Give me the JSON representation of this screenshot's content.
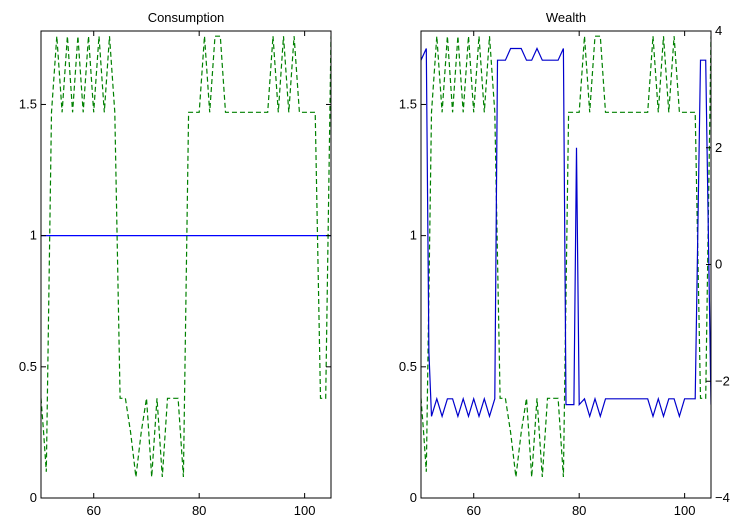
{
  "chart_data": [
    {
      "type": "line",
      "title": "Consumption",
      "xlabel": "",
      "ylabel": "",
      "xlim": [
        50,
        105
      ],
      "ylim": [
        0,
        1.78
      ],
      "xticks": [
        60,
        80,
        100
      ],
      "yticks": [
        0,
        0.5,
        1,
        1.5
      ],
      "ytick_labels": [
        "0",
        "0.5",
        "1",
        "1.5"
      ],
      "grid": false,
      "series": [
        {
          "style": "solid",
          "color": "#0000ff",
          "x": [
            50,
            105
          ],
          "y": [
            1.0,
            1.0
          ]
        },
        {
          "style": "dashed",
          "color": "#008000",
          "x": [
            50,
            50.5,
            51,
            52,
            53,
            54,
            55,
            56,
            57,
            58,
            59,
            60,
            61,
            62,
            63,
            64,
            65,
            66,
            67,
            68,
            69,
            70,
            71,
            72,
            73,
            74,
            75,
            76,
            77,
            78,
            79,
            80,
            81,
            82,
            83,
            84,
            85,
            86,
            87,
            88,
            89,
            90,
            91,
            92,
            93,
            94,
            95,
            96,
            97,
            98,
            99,
            100,
            101,
            102,
            103,
            104,
            105
          ],
          "y": [
            0.38,
            0.25,
            0.1,
            1.47,
            1.76,
            1.47,
            1.76,
            1.47,
            1.76,
            1.47,
            1.76,
            1.47,
            1.76,
            1.47,
            1.76,
            1.47,
            0.38,
            0.38,
            0.25,
            0.08,
            0.25,
            0.38,
            0.08,
            0.38,
            0.08,
            0.38,
            0.38,
            0.38,
            0.08,
            1.47,
            1.47,
            1.47,
            1.76,
            1.47,
            1.76,
            1.76,
            1.47,
            1.47,
            1.47,
            1.47,
            1.47,
            1.47,
            1.47,
            1.47,
            1.47,
            1.76,
            1.47,
            1.76,
            1.47,
            1.76,
            1.47,
            1.47,
            1.47,
            1.47,
            0.38,
            0.38,
            1.76
          ]
        }
      ]
    },
    {
      "type": "line",
      "title": "Wealth",
      "xlabel": "",
      "ylabel": "",
      "xlim": [
        50,
        105
      ],
      "ylim": [
        0,
        1.78
      ],
      "xticks": [
        60,
        80,
        100
      ],
      "yticks": [
        0,
        0.5,
        1,
        1.5
      ],
      "ytick_labels": [
        "0",
        "0.5",
        "1",
        "1.5"
      ],
      "y2lim": [
        -4,
        4
      ],
      "y2ticks": [
        -4,
        -2,
        0,
        2,
        4
      ],
      "y2tick_labels": [
        "−4",
        "−2",
        "0",
        "2",
        "4"
      ],
      "grid": false,
      "series": [
        {
          "style": "dashed",
          "color": "#008000",
          "axis": "left",
          "x": [
            50,
            50.5,
            51,
            52,
            53,
            54,
            55,
            56,
            57,
            58,
            59,
            60,
            61,
            62,
            63,
            64,
            65,
            66,
            67,
            68,
            69,
            70,
            71,
            72,
            73,
            74,
            75,
            76,
            77,
            78,
            79,
            80,
            81,
            82,
            83,
            84,
            85,
            86,
            87,
            88,
            89,
            90,
            91,
            92,
            93,
            94,
            95,
            96,
            97,
            98,
            99,
            100,
            101,
            102,
            103,
            104,
            105
          ],
          "y": [
            0.38,
            0.25,
            0.1,
            1.47,
            1.76,
            1.47,
            1.76,
            1.47,
            1.76,
            1.47,
            1.76,
            1.47,
            1.76,
            1.47,
            1.76,
            1.47,
            0.38,
            0.38,
            0.25,
            0.08,
            0.25,
            0.38,
            0.08,
            0.38,
            0.08,
            0.38,
            0.38,
            0.38,
            0.08,
            1.47,
            1.47,
            1.47,
            1.76,
            1.47,
            1.76,
            1.76,
            1.47,
            1.47,
            1.47,
            1.47,
            1.47,
            1.47,
            1.47,
            1.47,
            1.47,
            1.76,
            1.47,
            1.76,
            1.47,
            1.76,
            1.47,
            1.47,
            1.47,
            1.47,
            0.38,
            0.38,
            1.76
          ]
        },
        {
          "style": "solid",
          "color": "#0000cc",
          "axis": "right",
          "x": [
            50,
            51,
            51.5,
            52,
            53,
            54,
            55,
            56,
            57,
            58,
            59,
            60,
            61,
            62,
            63,
            64,
            64.5,
            65,
            66,
            67,
            68,
            69,
            70,
            71,
            72,
            73,
            74,
            75,
            76,
            77,
            77.5,
            78,
            79,
            79.5,
            80,
            81,
            82,
            83,
            84,
            85,
            86,
            87,
            88,
            89,
            90,
            91,
            92,
            93,
            94,
            95,
            96,
            97,
            98,
            99,
            100,
            101,
            102,
            103,
            104,
            105
          ],
          "y": [
            3.5,
            3.7,
            -1.5,
            -2.6,
            -2.3,
            -2.6,
            -2.3,
            -2.3,
            -2.6,
            -2.3,
            -2.6,
            -2.3,
            -2.6,
            -2.3,
            -2.6,
            -2.3,
            3.5,
            3.5,
            3.5,
            3.7,
            3.7,
            3.7,
            3.5,
            3.5,
            3.7,
            3.5,
            3.5,
            3.5,
            3.5,
            3.7,
            -2.4,
            -2.4,
            -2.4,
            2.0,
            -2.4,
            -2.3,
            -2.6,
            -2.3,
            -2.6,
            -2.3,
            -2.3,
            -2.3,
            -2.3,
            -2.3,
            -2.3,
            -2.3,
            -2.3,
            -2.3,
            -2.6,
            -2.3,
            -2.6,
            -2.3,
            -2.3,
            -2.6,
            -2.3,
            -2.3,
            -2.3,
            3.5,
            3.5,
            -2.4
          ]
        }
      ]
    }
  ]
}
